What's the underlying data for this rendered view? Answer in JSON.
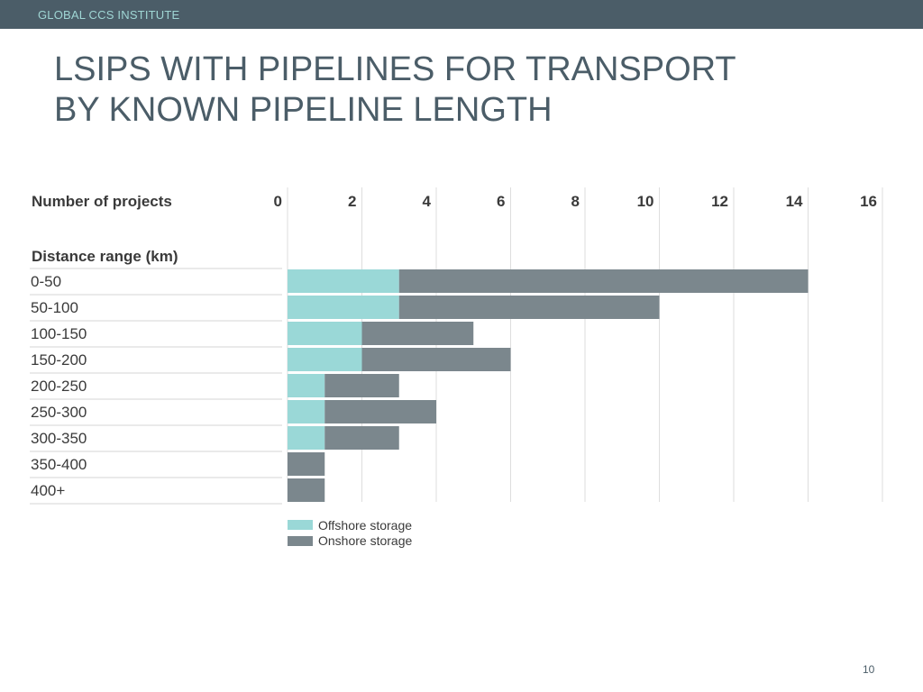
{
  "header": {
    "org": "GLOBAL CCS INSTITUTE"
  },
  "title": {
    "line1": "LSIPS WITH PIPELINES FOR TRANSPORT",
    "line2": "BY KNOWN PIPELINE LENGTH"
  },
  "page_number": "10",
  "colors": {
    "offshore": "#9ad8d7",
    "onshore": "#7b878d",
    "header_bg": "#4b5d68",
    "header_text": "#9fd6d4",
    "title_text": "#4b5d68"
  },
  "chart_data": {
    "type": "bar",
    "orientation": "horizontal",
    "stacked": true,
    "xlabel": "Number of projects",
    "ylabel": "Distance range (km)",
    "xlim": [
      0,
      16
    ],
    "xticks": [
      0,
      2,
      4,
      6,
      8,
      10,
      12,
      14,
      16
    ],
    "categories": [
      "0-50",
      "50-100",
      "100-150",
      "150-200",
      "200-250",
      "250-300",
      "300-350",
      "350-400",
      "400+"
    ],
    "series": [
      {
        "name": "Offshore storage",
        "values": [
          3,
          3,
          2,
          2,
          1,
          1,
          1,
          0,
          0
        ]
      },
      {
        "name": "Onshore storage",
        "values": [
          11,
          7,
          3,
          4,
          2,
          3,
          2,
          1,
          1
        ]
      }
    ],
    "grid": true,
    "legend": "bottom"
  }
}
